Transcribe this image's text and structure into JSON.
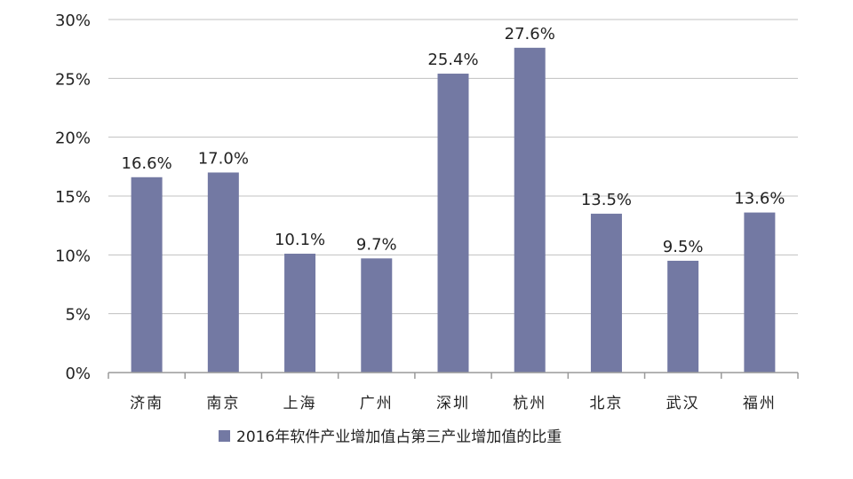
{
  "chart_data": {
    "type": "bar",
    "categories": [
      "济南",
      "南京",
      "上海",
      "广州",
      "深圳",
      "杭州",
      "北京",
      "武汉",
      "福州"
    ],
    "series": [
      {
        "name": "2016年软件产业增加值占第三产业增加值的比重",
        "values": [
          16.6,
          17.0,
          10.1,
          9.7,
          25.4,
          27.6,
          13.5,
          9.5,
          13.6
        ],
        "data_labels": [
          "16.6%",
          "17.0%",
          "10.1%",
          "9.7%",
          "25.4%",
          "27.6%",
          "13.5%",
          "9.5%",
          "13.6%"
        ],
        "color": "#7379a3"
      }
    ],
    "ylim": [
      0,
      30
    ],
    "yticks": [
      0,
      5,
      10,
      15,
      20,
      25,
      30
    ],
    "ytick_labels": [
      "0%",
      "5%",
      "10%",
      "15%",
      "20%",
      "25%",
      "30%"
    ],
    "grid": true,
    "grid_color": "#c0c0c0",
    "axis_color": "#9a9a9a",
    "legend": "bottom"
  }
}
